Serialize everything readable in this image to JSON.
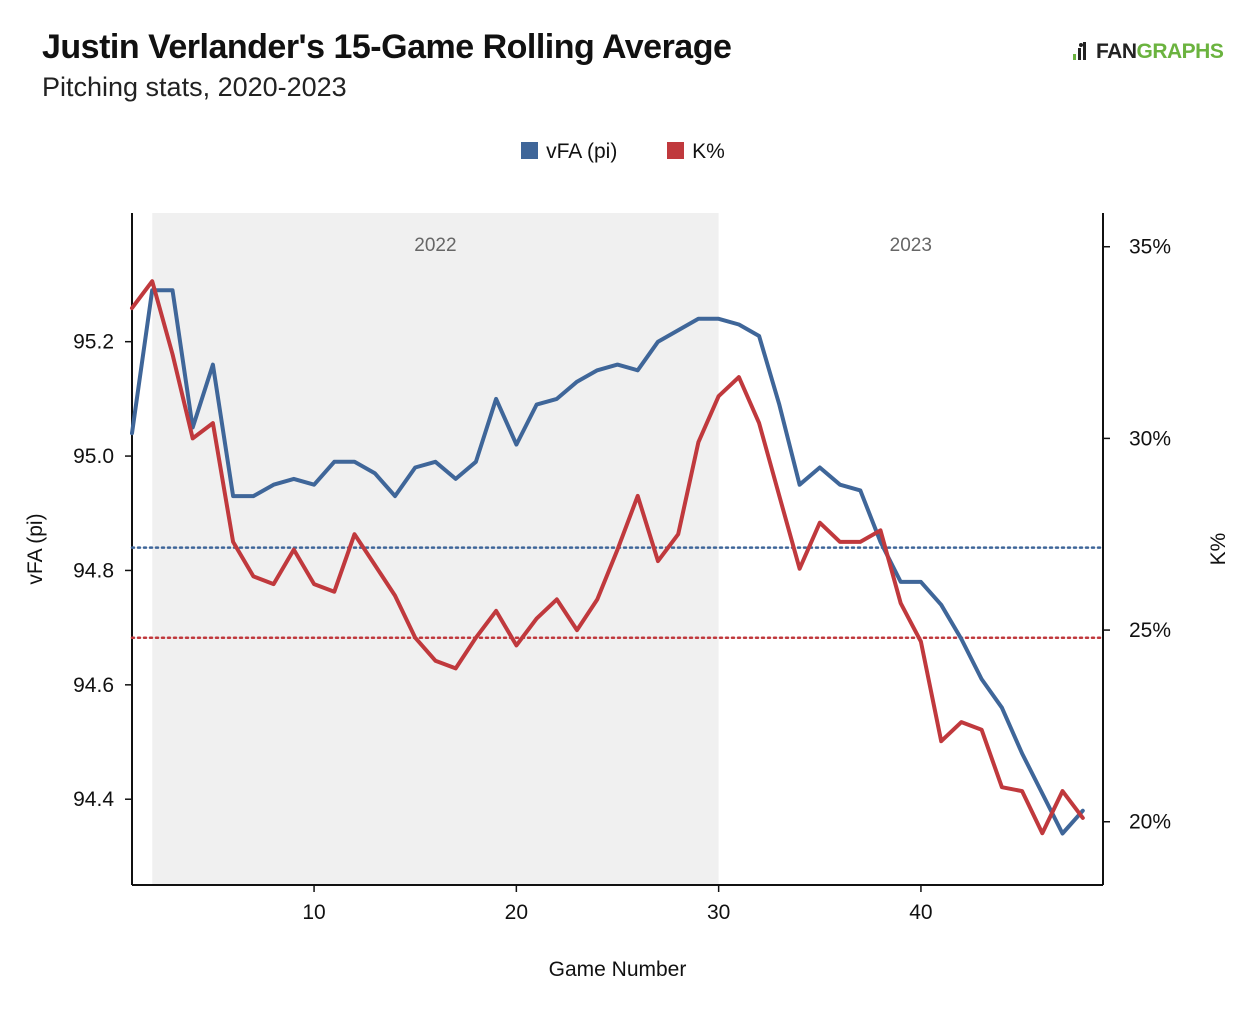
{
  "header": {
    "title": "Justin Verlander's 15-Game Rolling Average",
    "subtitle": "Pitching stats, 2020-2023",
    "logo_text_fan": "FAN",
    "logo_text_graphs": "GRAPHS"
  },
  "colors": {
    "vfa": "#3f6699",
    "k": "#c0393d",
    "band": "#f0f0f0",
    "logo_green": "#6bb33f"
  },
  "chart_data": {
    "type": "line",
    "title": "Justin Verlander's 15-Game Rolling Average",
    "subtitle": "Pitching stats, 2020-2023",
    "xlabel": "Game Number",
    "ylabel": "vFA (pi)",
    "y2label": "K%",
    "xlim": [
      1,
      49
    ],
    "ylim": [
      94.25,
      95.425
    ],
    "y2lim": [
      18.35,
      35.88
    ],
    "xticks": [
      10,
      20,
      30,
      40
    ],
    "yticks": [
      94.4,
      94.6,
      94.8,
      95.0,
      95.2
    ],
    "yticklabels": [
      "94.4",
      "94.6",
      "94.8",
      "95.0",
      "95.2"
    ],
    "y2ticks": [
      20,
      25,
      30,
      35
    ],
    "y2ticklabels": [
      "20%",
      "25%",
      "30%",
      "35%"
    ],
    "legend_position": "top-center",
    "grid": false,
    "bands": [
      {
        "label": "2022",
        "x0": 2,
        "x1": 30
      },
      {
        "label": "2023",
        "x0": 30,
        "x1": 49
      }
    ],
    "reference_lines": [
      {
        "series": "vFA (pi)",
        "axis": "left",
        "value": 94.84
      },
      {
        "series": "K%",
        "axis": "right",
        "value": 24.8
      }
    ],
    "x": [
      1,
      2,
      3,
      4,
      5,
      6,
      7,
      8,
      9,
      10,
      11,
      12,
      13,
      14,
      15,
      16,
      17,
      18,
      19,
      20,
      21,
      22,
      23,
      24,
      25,
      26,
      27,
      28,
      29,
      30,
      31,
      32,
      33,
      34,
      35,
      36,
      37,
      38,
      39,
      40,
      41,
      42,
      43,
      44,
      45,
      46,
      47,
      48
    ],
    "series": [
      {
        "name": "vFA (pi)",
        "axis": "left",
        "values": [
          95.04,
          95.29,
          95.29,
          95.05,
          95.16,
          94.93,
          94.93,
          94.95,
          94.96,
          94.95,
          94.99,
          94.99,
          94.97,
          94.93,
          94.98,
          94.99,
          94.96,
          94.99,
          95.1,
          95.02,
          95.09,
          95.1,
          95.13,
          95.15,
          95.16,
          95.15,
          95.2,
          95.22,
          95.24,
          95.24,
          95.23,
          95.21,
          95.09,
          94.95,
          94.98,
          94.95,
          94.94,
          94.85,
          94.78,
          94.78,
          94.74,
          94.68,
          94.61,
          94.56,
          94.48,
          94.41,
          94.34,
          94.38
        ]
      },
      {
        "name": "K%",
        "axis": "right",
        "values": [
          33.4,
          34.1,
          32.2,
          30.0,
          30.4,
          27.3,
          26.4,
          26.2,
          27.1,
          26.2,
          26.0,
          27.5,
          26.7,
          25.9,
          24.8,
          24.2,
          24.0,
          24.8,
          25.5,
          24.6,
          25.3,
          25.8,
          25.0,
          25.8,
          27.1,
          28.5,
          26.8,
          27.5,
          29.9,
          31.1,
          31.6,
          30.4,
          28.5,
          26.6,
          27.8,
          27.3,
          27.3,
          27.6,
          25.7,
          24.7,
          22.1,
          22.6,
          22.4,
          20.9,
          20.8,
          19.7,
          20.8,
          20.1
        ]
      }
    ]
  }
}
